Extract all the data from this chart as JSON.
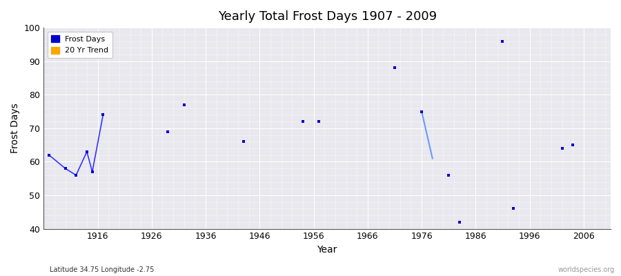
{
  "title": "Yearly Total Frost Days 1907 - 2009",
  "xlabel": "Year",
  "ylabel": "Frost Days",
  "xlim": [
    1906,
    2011
  ],
  "ylim": [
    40,
    100
  ],
  "yticks": [
    40,
    50,
    60,
    70,
    80,
    90,
    100
  ],
  "xticks": [
    1916,
    1926,
    1936,
    1946,
    1956,
    1966,
    1976,
    1986,
    1996,
    2006
  ],
  "scatter_x": [
    1907,
    1910,
    1912,
    1914,
    1915,
    1917,
    1929,
    1932,
    1943,
    1954,
    1957,
    1971,
    1976,
    1981,
    1983,
    1991,
    1993,
    2002,
    2004
  ],
  "scatter_y": [
    62,
    58,
    56,
    63,
    57,
    74,
    69,
    77,
    66,
    72,
    72,
    88,
    75,
    56,
    42,
    96,
    46,
    64,
    65
  ],
  "connected_x": [
    1907,
    1910,
    1912,
    1914,
    1915,
    1917
  ],
  "connected_y": [
    62,
    58,
    56,
    63,
    57,
    74
  ],
  "trend_x": [
    1976,
    1978
  ],
  "trend_y": [
    75,
    61
  ],
  "scatter_color": "#0000CC",
  "line_color": "#3333FF",
  "trend_color": "#6699FF",
  "background_color": "#E8E8EE",
  "plot_bg_color": "#E8E8EE",
  "grid_color": "#FFFFFF",
  "legend_frost_color": "#0000CC",
  "legend_trend_color": "#FFA500",
  "footer_left": "Latitude 34.75 Longitude -2.75",
  "footer_right": "worldspecies.org",
  "title_fontsize": 13,
  "footer_left_color": "#333333",
  "footer_right_color": "#999999"
}
